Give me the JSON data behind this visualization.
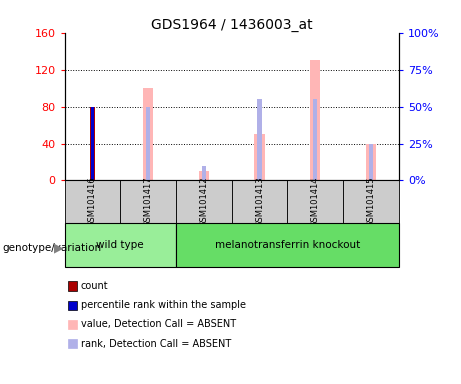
{
  "title": "GDS1964 / 1436003_at",
  "samples": [
    "GSM101416",
    "GSM101417",
    "GSM101412",
    "GSM101413",
    "GSM101414",
    "GSM101415"
  ],
  "count_values": [
    80,
    0,
    0,
    0,
    0,
    0
  ],
  "percentile_rank_values": [
    50,
    0,
    0,
    0,
    0,
    0
  ],
  "value_absent": [
    0,
    100,
    10,
    50,
    130,
    40
  ],
  "rank_absent": [
    0,
    50,
    10,
    55,
    55,
    25
  ],
  "left_ylim": [
    0,
    160
  ],
  "right_ylim": [
    0,
    100
  ],
  "left_yticks": [
    0,
    40,
    80,
    120,
    160
  ],
  "right_yticks": [
    0,
    25,
    50,
    75,
    100
  ],
  "right_yticklabels": [
    "0%",
    "25%",
    "50%",
    "75%",
    "100%"
  ],
  "count_color": "#aa0000",
  "percentile_color": "#0000cc",
  "value_absent_color": "#ffb6b6",
  "rank_absent_color": "#b0b0e8",
  "group_wt_color": "#99ee99",
  "group_ko_color": "#66dd66",
  "label_area_color": "#cccccc",
  "bg_color": "#ffffff",
  "genotype_label": "genotype/variation",
  "legend_items": [
    {
      "label": "count",
      "color": "#aa0000"
    },
    {
      "label": "percentile rank within the sample",
      "color": "#0000cc"
    },
    {
      "label": "value, Detection Call = ABSENT",
      "color": "#ffb6b6"
    },
    {
      "label": "rank, Detection Call = ABSENT",
      "color": "#b0b0e8"
    }
  ]
}
